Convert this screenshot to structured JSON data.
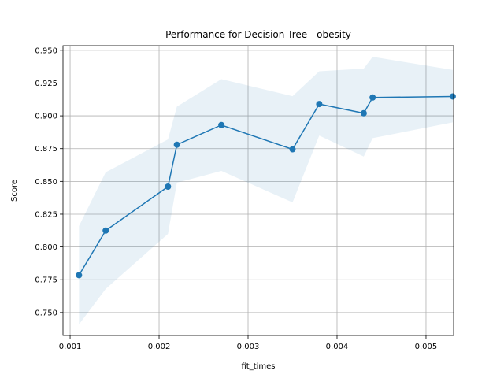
{
  "chart_data": {
    "type": "line",
    "title": "Performance for Decision Tree - obesity",
    "xlabel": "fit_times",
    "ylabel": "Score",
    "xlim": [
      0.00092,
      0.00531
    ],
    "ylim": [
      0.7325,
      0.9535
    ],
    "xticks": [
      0.001,
      0.002,
      0.003,
      0.004,
      0.005
    ],
    "xtick_labels": [
      "0.001",
      "0.002",
      "0.003",
      "0.004",
      "0.005"
    ],
    "yticks": [
      0.75,
      0.775,
      0.8,
      0.825,
      0.85,
      0.875,
      0.9,
      0.925,
      0.95
    ],
    "ytick_labels": [
      "0.750",
      "0.775",
      "0.800",
      "0.825",
      "0.850",
      "0.875",
      "0.900",
      "0.925",
      "0.950"
    ],
    "grid": true,
    "colors": {
      "line": "#1f77b4",
      "band": "#1f77b4",
      "grid": "#b0b0b0"
    },
    "series": [
      {
        "x": [
          0.0011,
          0.0014,
          0.0021,
          0.0022,
          0.0027,
          0.0035,
          0.0038,
          0.0043,
          0.0044,
          0.0053
        ],
        "values": [
          0.7785,
          0.8125,
          0.846,
          0.878,
          0.893,
          0.8745,
          0.909,
          0.902,
          0.914,
          0.9148
        ],
        "upper": [
          0.816,
          0.857,
          0.882,
          0.907,
          0.928,
          0.915,
          0.934,
          0.936,
          0.945,
          0.935
        ],
        "lower": [
          0.741,
          0.768,
          0.81,
          0.849,
          0.858,
          0.834,
          0.885,
          0.869,
          0.883,
          0.895
        ]
      }
    ]
  }
}
